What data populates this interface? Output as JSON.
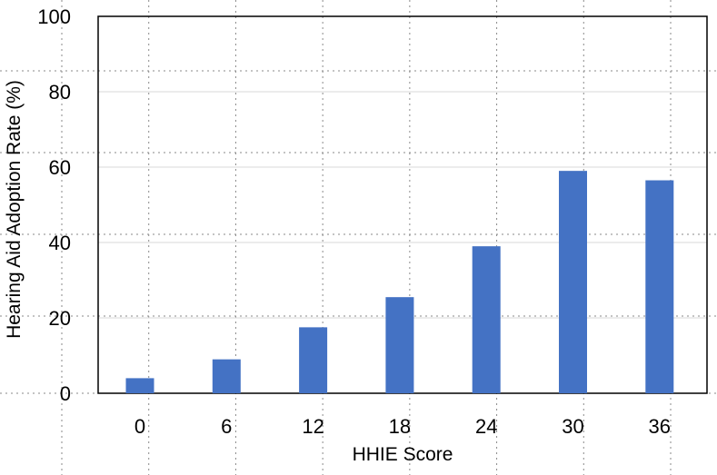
{
  "chart_data": {
    "type": "bar",
    "xlabel": "HHIE Score",
    "ylabel": "Hearing Aid Adoption Rate (%)",
    "categories": [
      "0",
      "6",
      "12",
      "18",
      "24",
      "30",
      "36"
    ],
    "values": [
      4,
      9,
      17.5,
      25.5,
      39,
      59,
      56.5
    ],
    "ylim": [
      0,
      100
    ],
    "yticks": [
      "0",
      "20",
      "40",
      "60",
      "80",
      "100"
    ],
    "grid": true,
    "legend": "none",
    "bar_color": "#4472C4"
  }
}
